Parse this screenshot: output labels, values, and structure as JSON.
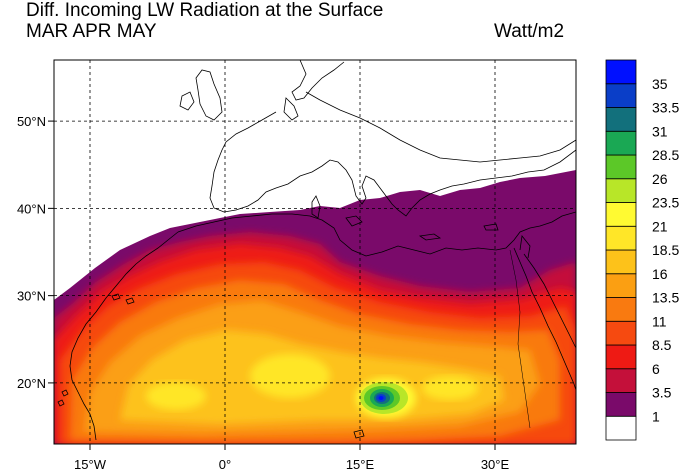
{
  "header": {
    "title": "Diff. Incoming LW Radiation at the Surface",
    "subtitle": "MAR APR MAY",
    "units": "Watt/m2"
  },
  "map": {
    "projection": "cylindrical-equidistant",
    "lon_range": [
      -19,
      39
    ],
    "lat_range": [
      13,
      57
    ],
    "gridlines": true,
    "lon_ticks": [
      {
        "value": -15,
        "label": "15°W"
      },
      {
        "value": 0,
        "label": "0°"
      },
      {
        "value": 15,
        "label": "15°E"
      },
      {
        "value": 30,
        "label": "30°E"
      }
    ],
    "lat_ticks": [
      {
        "value": 20,
        "label": "20°N"
      },
      {
        "value": 30,
        "label": "30°N"
      },
      {
        "value": 40,
        "label": "40°N"
      },
      {
        "value": 50,
        "label": "50°N"
      }
    ]
  },
  "colorbar": {
    "levels": [
      "1",
      "3.5",
      "6",
      "8.5",
      "11",
      "13.5",
      "16",
      "18.5",
      "21",
      "23.5",
      "26",
      "28.5",
      "31",
      "33.5",
      "35"
    ],
    "colors": [
      "#ffffff",
      "#7a0a6a",
      "#c4103a",
      "#ee1a14",
      "#f64a10",
      "#f97a10",
      "#fb9f12",
      "#fdc21a",
      "#ffe628",
      "#fffa32",
      "#b8e628",
      "#5cc828",
      "#1aa854",
      "#12707c",
      "#0a3ec8",
      "#0010ff"
    ]
  },
  "icons": {
    "coastline": "coastline-icon"
  }
}
